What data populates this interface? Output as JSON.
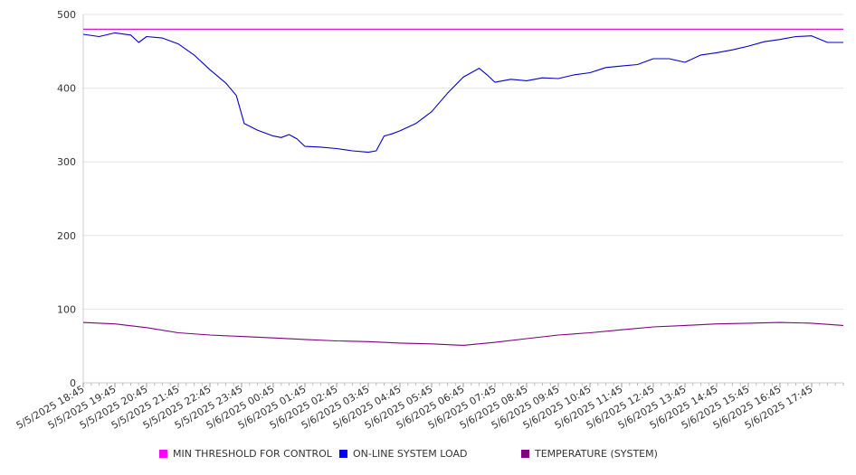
{
  "chart_data": {
    "type": "line",
    "title": "",
    "xlabel": "",
    "ylabel": "",
    "ylim": [
      0,
      500
    ],
    "yticks": [
      "0",
      "100",
      "200",
      "300",
      "400",
      "500"
    ],
    "x_tick_labels": [
      "5/5/2025 18:45",
      "5/5/2025 19:45",
      "5/5/2025 20:45",
      "5/5/2025 21:45",
      "5/5/2025 22:45",
      "5/5/2025 23:45",
      "5/6/2025 00:45",
      "5/6/2025 01:45",
      "5/6/2025 02:45",
      "5/6/2025 03:45",
      "5/6/2025 04:45",
      "5/6/2025 05:45",
      "5/6/2025 06:45",
      "5/6/2025 07:45",
      "5/6/2025 08:45",
      "5/6/2025 09:45",
      "5/6/2025 10:45",
      "5/6/2025 11:45",
      "5/6/2025 12:45",
      "5/6/2025 13:45",
      "5/6/2025 14:45",
      "5/6/2025 15:45",
      "5/6/2025 16:45",
      "5/6/2025 17:45"
    ],
    "x_start": "5/5/2025 18:45",
    "x_end": "5/6/2025 18:45",
    "grid": true,
    "legend_position": "bottom",
    "series": [
      {
        "name": "MIN THRESHOLD FOR CONTROL",
        "color": "#cc00cc",
        "x": [
          "5/5/2025 18:45",
          "5/6/2025 18:45"
        ],
        "values": [
          480,
          480
        ]
      },
      {
        "name": "ON-LINE SYSTEM LOAD",
        "color": "#0000cc",
        "x": [
          "5/5/2025 18:45",
          "5/5/2025 19:15",
          "5/5/2025 19:45",
          "5/5/2025 20:15",
          "5/5/2025 20:30",
          "5/5/2025 20:45",
          "5/5/2025 21:15",
          "5/5/2025 21:45",
          "5/5/2025 22:15",
          "5/5/2025 22:45",
          "5/5/2025 23:15",
          "5/5/2025 23:35",
          "5/5/2025 23:50",
          "5/6/2025 00:15",
          "5/6/2025 00:45",
          "5/6/2025 01:00",
          "5/6/2025 01:15",
          "5/6/2025 01:30",
          "5/6/2025 01:45",
          "5/6/2025 02:15",
          "5/6/2025 02:45",
          "5/6/2025 03:15",
          "5/6/2025 03:45",
          "5/6/2025 04:00",
          "5/6/2025 04:15",
          "5/6/2025 04:30",
          "5/6/2025 04:45",
          "5/6/2025 05:15",
          "5/6/2025 05:45",
          "5/6/2025 06:15",
          "5/6/2025 06:45",
          "5/6/2025 07:15",
          "5/6/2025 07:30",
          "5/6/2025 07:45",
          "5/6/2025 08:15",
          "5/6/2025 08:45",
          "5/6/2025 09:15",
          "5/6/2025 09:45",
          "5/6/2025 10:15",
          "5/6/2025 10:45",
          "5/6/2025 11:15",
          "5/6/2025 11:45",
          "5/6/2025 12:15",
          "5/6/2025 12:45",
          "5/6/2025 13:15",
          "5/6/2025 13:45",
          "5/6/2025 14:15",
          "5/6/2025 14:45",
          "5/6/2025 15:15",
          "5/6/2025 15:45",
          "5/6/2025 16:15",
          "5/6/2025 16:45",
          "5/6/2025 17:15",
          "5/6/2025 17:45",
          "5/6/2025 18:15",
          "5/6/2025 18:45"
        ],
        "values": [
          473,
          470,
          475,
          472,
          462,
          470,
          468,
          460,
          445,
          425,
          407,
          390,
          352,
          343,
          335,
          333,
          337,
          331,
          321,
          320,
          318,
          315,
          313,
          315,
          335,
          338,
          342,
          352,
          368,
          393,
          415,
          427,
          418,
          408,
          412,
          410,
          414,
          413,
          418,
          421,
          428,
          430,
          432,
          440,
          440,
          435,
          445,
          448,
          452,
          457,
          463,
          466,
          470,
          471,
          462,
          462
        ]
      },
      {
        "name": "TEMPERATURE (SYSTEM)",
        "color": "#800080",
        "x": [
          "5/5/2025 18:45",
          "5/5/2025 19:45",
          "5/5/2025 20:45",
          "5/5/2025 21:45",
          "5/5/2025 22:45",
          "5/5/2025 23:45",
          "5/6/2025 00:45",
          "5/6/2025 01:45",
          "5/6/2025 02:45",
          "5/6/2025 03:45",
          "5/6/2025 04:45",
          "5/6/2025 05:45",
          "5/6/2025 06:45",
          "5/6/2025 07:45",
          "5/6/2025 08:45",
          "5/6/2025 09:45",
          "5/6/2025 10:45",
          "5/6/2025 11:45",
          "5/6/2025 12:45",
          "5/6/2025 13:45",
          "5/6/2025 14:45",
          "5/6/2025 15:45",
          "5/6/2025 16:45",
          "5/6/2025 17:45",
          "5/6/2025 18:45"
        ],
        "values": [
          82,
          80,
          75,
          68,
          65,
          63,
          61,
          59,
          57,
          56,
          54,
          53,
          51,
          55,
          60,
          65,
          68,
          72,
          76,
          78,
          80,
          81,
          82,
          81,
          78
        ]
      }
    ]
  }
}
